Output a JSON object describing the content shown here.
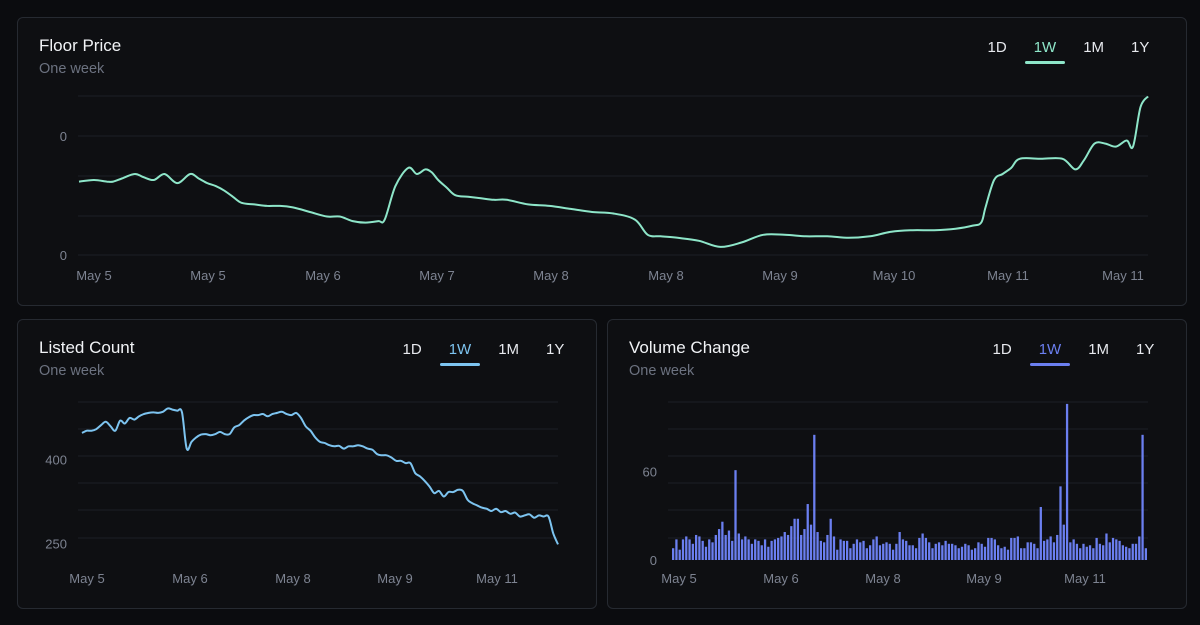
{
  "colors": {
    "floor": "#8ee6c9",
    "listed": "#7dc4f0",
    "volume": "#6b7ff0",
    "text": "#e7e9ee",
    "muted": "#6c7280"
  },
  "panels": [
    {
      "id": "floor",
      "title": "Floor Price",
      "subtitle": "One week",
      "tabs": [
        "1D",
        "1W",
        "1M",
        "1Y"
      ],
      "active_tab": "1W"
    },
    {
      "id": "listed",
      "title": "Listed Count",
      "subtitle": "One week",
      "tabs": [
        "1D",
        "1W",
        "1M",
        "1Y"
      ],
      "active_tab": "1W"
    },
    {
      "id": "volume",
      "title": "Volume Change",
      "subtitle": "One week",
      "tabs": [
        "1D",
        "1W",
        "1M",
        "1Y"
      ],
      "active_tab": "1W"
    }
  ],
  "chart_data": [
    {
      "type": "line",
      "title": "Floor Price",
      "x_tick_labels": [
        "May 5",
        "May 5",
        "May 6",
        "May 7",
        "May 8",
        "May 8",
        "May 9",
        "May 10",
        "May 11",
        "May 11"
      ],
      "y_tick_labels": [
        "0",
        "0"
      ],
      "ylim": [
        0,
        1
      ],
      "grid": true,
      "x": [
        0,
        1.4,
        2.6,
        3.2,
        4.0,
        5.2,
        6.0,
        7.0,
        8.0,
        9.2,
        10.4,
        11.2,
        12.0,
        12.8,
        13.6,
        14.4,
        15.2,
        16.4,
        17.6,
        18.8,
        20.0,
        21.6,
        23.2,
        24.4,
        25.6,
        26.8,
        28.0,
        28.6,
        29.6,
        30.8,
        31.6,
        32.4,
        33.0,
        33.6,
        34.4,
        35.2,
        36.4,
        37.6,
        38.8,
        40.0,
        42.0,
        44.0,
        46.0,
        48.0,
        50.0,
        52.0,
        53.2,
        54.4,
        56.0,
        58.0,
        60.0,
        62.0,
        64.0,
        66.0,
        68.0,
        70.0,
        72.0,
        74.0,
        76.0,
        78.0,
        80.0,
        82.0,
        83.6,
        84.4,
        84.8,
        85.6,
        86.4,
        87.2,
        88.0,
        90.0,
        92.0,
        93.2,
        94.0,
        95.0,
        96.0,
        97.0,
        98.0,
        98.6,
        99.3,
        100
      ],
      "y": [
        0.47,
        0.48,
        0.47,
        0.47,
        0.49,
        0.52,
        0.5,
        0.48,
        0.52,
        0.46,
        0.52,
        0.49,
        0.46,
        0.44,
        0.41,
        0.37,
        0.33,
        0.32,
        0.31,
        0.31,
        0.3,
        0.27,
        0.24,
        0.24,
        0.21,
        0.2,
        0.21,
        0.22,
        0.44,
        0.56,
        0.52,
        0.55,
        0.53,
        0.48,
        0.43,
        0.38,
        0.37,
        0.36,
        0.35,
        0.35,
        0.32,
        0.31,
        0.29,
        0.27,
        0.26,
        0.22,
        0.12,
        0.11,
        0.1,
        0.08,
        0.04,
        0.07,
        0.12,
        0.12,
        0.11,
        0.11,
        0.1,
        0.11,
        0.14,
        0.15,
        0.15,
        0.16,
        0.18,
        0.2,
        0.3,
        0.48,
        0.52,
        0.56,
        0.62,
        0.62,
        0.62,
        0.55,
        0.61,
        0.72,
        0.72,
        0.7,
        0.74,
        0.7,
        0.96,
        1.03
      ]
    },
    {
      "type": "line",
      "title": "Listed Count",
      "x_tick_labels": [
        "May 5",
        "May 6",
        "May 8",
        "May 9",
        "May 11"
      ],
      "y_tick_labels": [
        "400",
        "250"
      ],
      "y_ticks": [
        400,
        250
      ],
      "ylim": [
        220,
        500
      ],
      "grid": true,
      "x": [
        0,
        1,
        2,
        3,
        4,
        5,
        6,
        7,
        8,
        9,
        10,
        11,
        12,
        13,
        14,
        15,
        16,
        17,
        18,
        19,
        20,
        21,
        22,
        23,
        24,
        25,
        26,
        27,
        28,
        29,
        30,
        31,
        32,
        33,
        34,
        35,
        36,
        37,
        38,
        39,
        40,
        41,
        42,
        43,
        44,
        45,
        46,
        47,
        48,
        49,
        50,
        51,
        52,
        53,
        54,
        55,
        56,
        57,
        58,
        59,
        60,
        61,
        62,
        63,
        64,
        65,
        66,
        67,
        68,
        69,
        70,
        71,
        72,
        73,
        74,
        75,
        76,
        77,
        78,
        79,
        80,
        81,
        82,
        83,
        84,
        85,
        86,
        87,
        88,
        89,
        90,
        91,
        92,
        93,
        94,
        95,
        96,
        97,
        98,
        99,
        100
      ],
      "y": [
        448,
        452,
        452,
        455,
        462,
        468,
        460,
        452,
        470,
        465,
        475,
        472,
        478,
        482,
        484,
        485,
        484,
        486,
        492,
        490,
        488,
        485,
        420,
        432,
        440,
        445,
        446,
        444,
        446,
        450,
        446,
        446,
        458,
        462,
        470,
        476,
        480,
        480,
        482,
        478,
        482,
        484,
        486,
        482,
        480,
        484,
        475,
        460,
        452,
        440,
        432,
        430,
        426,
        424,
        425,
        420,
        424,
        424,
        426,
        424,
        420,
        418,
        410,
        408,
        408,
        404,
        398,
        398,
        394,
        394,
        376,
        370,
        362,
        352,
        340,
        344,
        334,
        342,
        342,
        346,
        344,
        328,
        322,
        318,
        314,
        312,
        308,
        312,
        306,
        308,
        303,
        305,
        298,
        300,
        302,
        296,
        300,
        298,
        298,
        268,
        248
      ]
    },
    {
      "type": "bar",
      "title": "Volume Change",
      "x_tick_labels": [
        "May 5",
        "May 6",
        "May 8",
        "May 9",
        "May 11"
      ],
      "y_tick_labels": [
        "60",
        "0"
      ],
      "y_ticks": [
        60,
        0
      ],
      "ylim": [
        0,
        110
      ],
      "grid": true,
      "values": [
        8,
        14,
        7,
        14,
        16,
        14,
        11,
        17,
        16,
        13,
        9,
        14,
        12,
        17,
        21,
        26,
        17,
        20,
        13,
        61,
        18,
        14,
        16,
        14,
        11,
        14,
        13,
        10,
        14,
        9,
        13,
        14,
        15,
        16,
        19,
        17,
        23,
        28,
        28,
        17,
        21,
        38,
        24,
        85,
        19,
        13,
        12,
        17,
        28,
        16,
        7,
        14,
        13,
        13,
        8,
        11,
        14,
        12,
        13,
        8,
        10,
        14,
        16,
        10,
        11,
        12,
        11,
        7,
        11,
        19,
        14,
        13,
        10,
        10,
        8,
        15,
        18,
        15,
        12,
        8,
        11,
        12,
        10,
        13,
        11,
        11,
        10,
        8,
        9,
        11,
        10,
        7,
        8,
        12,
        11,
        9,
        15,
        15,
        14,
        10,
        8,
        9,
        7,
        15,
        15,
        16,
        8,
        8,
        12,
        12,
        11,
        8,
        36,
        13,
        14,
        16,
        12,
        17,
        50,
        24,
        106,
        12,
        14,
        11,
        8,
        11,
        9,
        10,
        8,
        15,
        11,
        10,
        18,
        12,
        15,
        14,
        13,
        10,
        9,
        8,
        11,
        11,
        16,
        85,
        8
      ]
    }
  ]
}
